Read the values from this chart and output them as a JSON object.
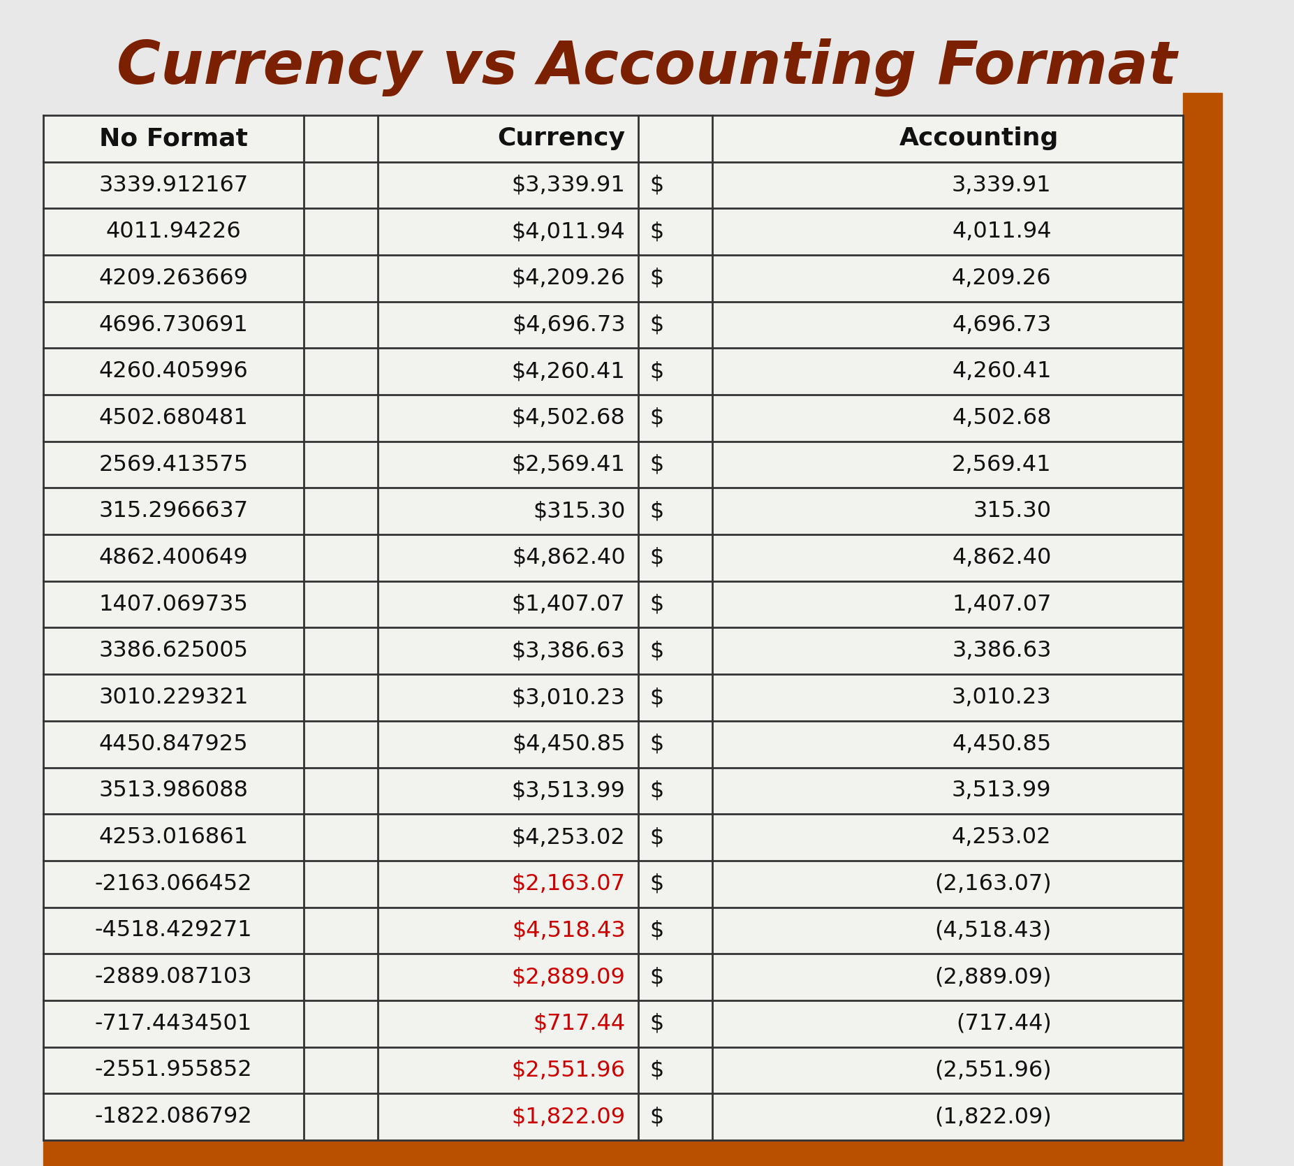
{
  "title": "Currency vs Accounting Format",
  "title_color": "#7B2000",
  "bg_color": "#E8E8E8",
  "table_bg": "#F2F2EE",
  "border_color": "#222222",
  "accent_color": "#B85000",
  "headers": [
    "No Format",
    "",
    "Currency",
    "",
    "Accounting"
  ],
  "rows": [
    [
      "3339.912167",
      "",
      "$3,339.91",
      "$",
      "3,339.91"
    ],
    [
      "4011.94226",
      "",
      "$4,011.94",
      "$",
      "4,011.94"
    ],
    [
      "4209.263669",
      "",
      "$4,209.26",
      "$",
      "4,209.26"
    ],
    [
      "4696.730691",
      "",
      "$4,696.73",
      "$",
      "4,696.73"
    ],
    [
      "4260.405996",
      "",
      "$4,260.41",
      "$",
      "4,260.41"
    ],
    [
      "4502.680481",
      "",
      "$4,502.68",
      "$",
      "4,502.68"
    ],
    [
      "2569.413575",
      "",
      "$2,569.41",
      "$",
      "2,569.41"
    ],
    [
      "315.2966637",
      "",
      "$315.30",
      "$",
      "315.30"
    ],
    [
      "4862.400649",
      "",
      "$4,862.40",
      "$",
      "4,862.40"
    ],
    [
      "1407.069735",
      "",
      "$1,407.07",
      "$",
      "1,407.07"
    ],
    [
      "3386.625005",
      "",
      "$3,386.63",
      "$",
      "3,386.63"
    ],
    [
      "3010.229321",
      "",
      "$3,010.23",
      "$",
      "3,010.23"
    ],
    [
      "4450.847925",
      "",
      "$4,450.85",
      "$",
      "4,450.85"
    ],
    [
      "3513.986088",
      "",
      "$3,513.99",
      "$",
      "3,513.99"
    ],
    [
      "4253.016861",
      "",
      "$4,253.02",
      "$",
      "4,253.02"
    ],
    [
      "-2163.066452",
      "",
      "$2,163.07",
      "$",
      "(2,163.07)"
    ],
    [
      "-4518.429271",
      "",
      "$4,518.43",
      "$",
      "(4,518.43)"
    ],
    [
      "-2889.087103",
      "",
      "$2,889.09",
      "$",
      "(2,889.09)"
    ],
    [
      "-717.4434501",
      "",
      "$717.44",
      "$",
      "(717.44)"
    ],
    [
      "-2551.955852",
      "",
      "$2,551.96",
      "$",
      "(2,551.96)"
    ],
    [
      "-1822.086792",
      "",
      "$1,822.09",
      "$",
      "(1,822.09)"
    ]
  ],
  "negative_rows": [
    15,
    16,
    17,
    18,
    19,
    20
  ],
  "text_color": "#111111",
  "negative_color": "#CC0000"
}
